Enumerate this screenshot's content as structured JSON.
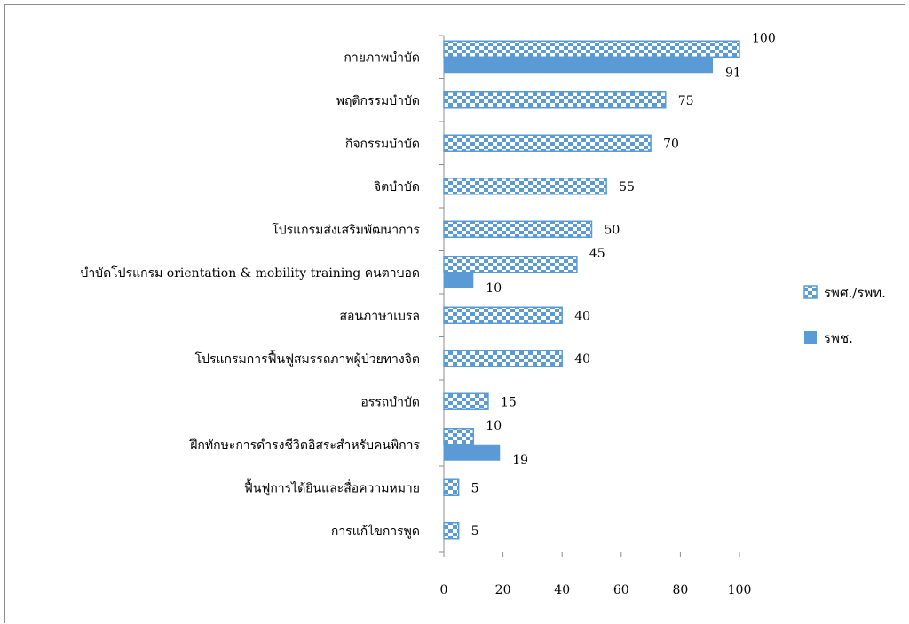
{
  "chart_data": {
    "type": "bar",
    "orientation": "horizontal",
    "title": "",
    "xlabel": "",
    "ylabel": "",
    "xlim": [
      0,
      100
    ],
    "xticks": [
      0,
      20,
      40,
      60,
      80,
      100
    ],
    "grid": false,
    "legend_position": "right",
    "categories": [
      "กายภาพบำบัด",
      "พฤติกรรมบำบัด",
      "กิจกรรมบำบัด",
      "จิตบำบัด",
      "โปรแกรมส่งเสริมพัฒนาการ",
      "บำบัดโปรแกรม orientation & mobility   training คนตาบอด",
      "สอนภาษาเบรล",
      "โปรแกรมการฟื้นฟูสมรรถภาพผู้ป่วยทางจิต",
      "อรรถบำบัด",
      "ฝึกทักษะการดำรงชีวิตอิสระสำหรับคนพิการ",
      "ฟื้นฟูการได้ยินและสื่อความหมาย",
      "การแก้ไขการพูด"
    ],
    "series": [
      {
        "name": "รพศ./รพท.",
        "pattern": "checker",
        "color": "#5b9bd5",
        "values": [
          100,
          75,
          70,
          55,
          50,
          45,
          40,
          40,
          15,
          10,
          5,
          5
        ]
      },
      {
        "name": "รพช.",
        "pattern": "solid",
        "color": "#5b9bd5",
        "values": [
          91,
          null,
          null,
          null,
          null,
          10,
          null,
          null,
          null,
          19,
          null,
          null
        ]
      }
    ]
  }
}
